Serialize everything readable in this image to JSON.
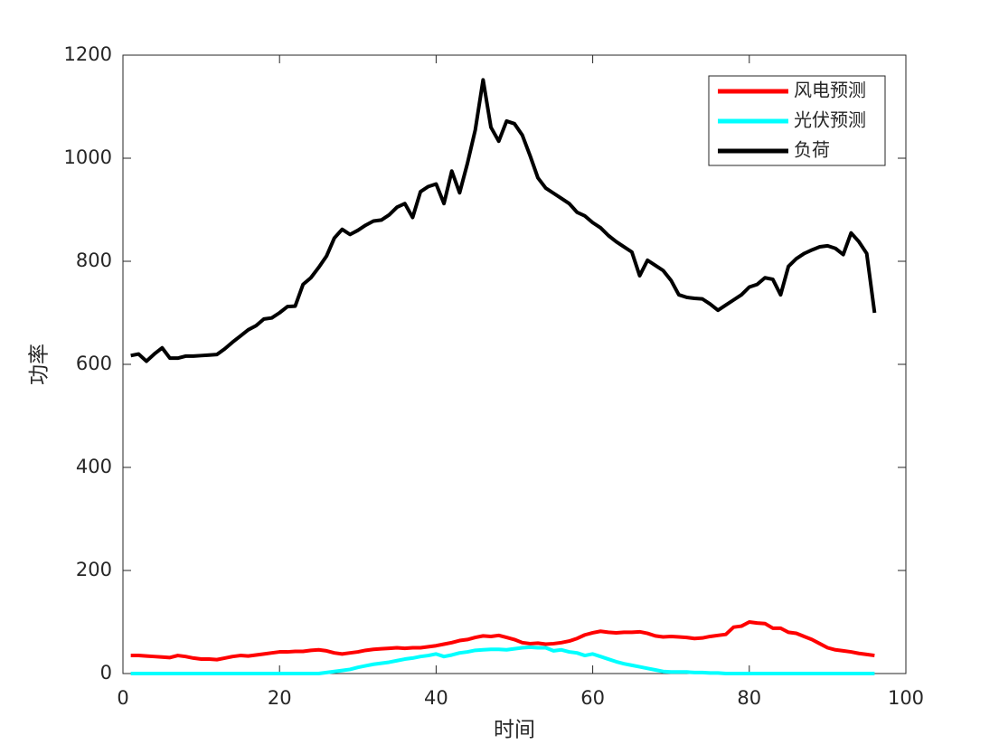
{
  "chart_data": {
    "type": "line",
    "xlabel": "时间",
    "ylabel": "功率",
    "x": [
      1,
      2,
      3,
      4,
      5,
      6,
      7,
      8,
      9,
      10,
      11,
      12,
      13,
      14,
      15,
      16,
      17,
      18,
      19,
      20,
      21,
      22,
      23,
      24,
      25,
      26,
      27,
      28,
      29,
      30,
      31,
      32,
      33,
      34,
      35,
      36,
      37,
      38,
      39,
      40,
      41,
      42,
      43,
      44,
      45,
      46,
      47,
      48,
      49,
      50,
      51,
      52,
      53,
      54,
      55,
      56,
      57,
      58,
      59,
      60,
      61,
      62,
      63,
      64,
      65,
      66,
      67,
      68,
      69,
      70,
      71,
      72,
      73,
      74,
      75,
      76,
      77,
      78,
      79,
      80,
      81,
      82,
      83,
      84,
      85,
      86,
      87,
      88,
      89,
      90,
      91,
      92,
      93,
      94,
      95,
      96
    ],
    "series": [
      {
        "name": "风电预测",
        "color": "#ff0000",
        "values": [
          35,
          35,
          34,
          33,
          32,
          31,
          35,
          33,
          30,
          28,
          28,
          27,
          30,
          33,
          35,
          34,
          36,
          38,
          40,
          42,
          42,
          43,
          43,
          45,
          46,
          44,
          40,
          38,
          40,
          42,
          45,
          47,
          48,
          49,
          50,
          49,
          50,
          50,
          52,
          54,
          57,
          60,
          64,
          66,
          70,
          73,
          72,
          74,
          70,
          66,
          60,
          58,
          59,
          57,
          58,
          60,
          63,
          68,
          75,
          79,
          82,
          80,
          79,
          80,
          80,
          81,
          78,
          73,
          71,
          72,
          71,
          70,
          68,
          69,
          72,
          74,
          76,
          90,
          92,
          100,
          98,
          97,
          88,
          88,
          80,
          78,
          72,
          66,
          58,
          50,
          46,
          44,
          42,
          39,
          37,
          35
        ]
      },
      {
        "name": "光伏预测",
        "color": "#00ffff",
        "values": [
          0,
          0,
          0,
          0,
          0,
          0,
          0,
          0,
          0,
          0,
          0,
          0,
          0,
          0,
          0,
          0,
          0,
          0,
          0,
          0,
          0,
          0,
          0,
          0,
          0,
          2,
          4,
          6,
          8,
          12,
          15,
          18,
          20,
          22,
          25,
          28,
          30,
          33,
          35,
          38,
          33,
          36,
          40,
          42,
          45,
          46,
          47,
          47,
          46,
          48,
          50,
          51,
          50,
          50,
          44,
          46,
          42,
          40,
          35,
          38,
          33,
          28,
          23,
          19,
          16,
          13,
          10,
          7,
          4,
          3,
          3,
          3,
          2,
          2,
          1,
          1,
          0,
          0,
          0,
          0,
          0,
          0,
          0,
          0,
          0,
          0,
          0,
          0,
          0,
          0,
          0,
          0,
          0,
          0,
          0,
          0
        ]
      },
      {
        "name": "负荷",
        "color": "#000000",
        "values": [
          617,
          620,
          606,
          620,
          632,
          612,
          612,
          616,
          616,
          617,
          618,
          619,
          630,
          643,
          655,
          667,
          675,
          688,
          690,
          700,
          712,
          713,
          755,
          768,
          788,
          810,
          845,
          862,
          852,
          860,
          870,
          878,
          880,
          890,
          905,
          912,
          885,
          935,
          945,
          950,
          912,
          975,
          933,
          990,
          1055,
          1152,
          1060,
          1033,
          1072,
          1067,
          1045,
          1005,
          962,
          942,
          932,
          922,
          912,
          895,
          888,
          875,
          865,
          850,
          838,
          828,
          818,
          772,
          802,
          792,
          782,
          763,
          735,
          730,
          728,
          727,
          717,
          705,
          715,
          725,
          735,
          750,
          755,
          768,
          765,
          735,
          790,
          805,
          815,
          822,
          828,
          830,
          825,
          813,
          855,
          838,
          815,
          700
        ]
      }
    ],
    "xlim": [
      0,
      100
    ],
    "xticks": [
      0,
      20,
      40,
      60,
      80,
      100
    ],
    "ylim": [
      0,
      1200
    ],
    "yticks": [
      0,
      200,
      400,
      600,
      800,
      1000,
      1200
    ],
    "legend": "northeast"
  }
}
